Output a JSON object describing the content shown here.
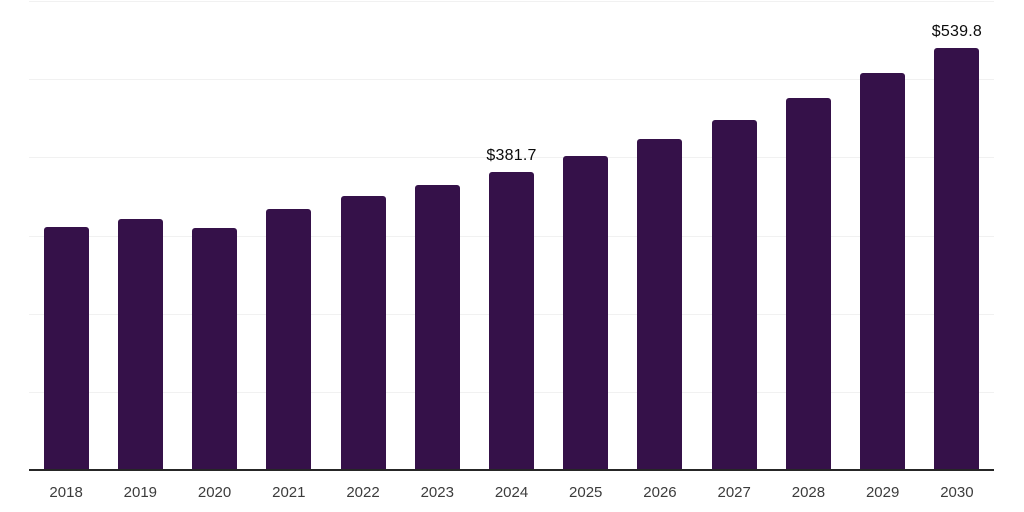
{
  "colors": {
    "background": "#ffffff",
    "bar": "#351149",
    "gridline": "#f1f1f1",
    "axis_line": "#262626",
    "tick_label": "#3c3c3c",
    "value_label": "#0b0b0b"
  },
  "chart_data": {
    "type": "bar",
    "title": "",
    "xlabel": "",
    "ylabel": "",
    "categories": [
      "2018",
      "2019",
      "2020",
      "2021",
      "2022",
      "2023",
      "2024",
      "2025",
      "2026",
      "2027",
      "2028",
      "2029",
      "2030"
    ],
    "values": [
      311,
      321,
      310,
      334,
      350,
      365,
      381.7,
      402,
      424,
      448,
      476,
      508,
      539.8
    ],
    "value_labels": [
      {
        "category": "2024",
        "text": "$381.7"
      },
      {
        "category": "2030",
        "text": "$539.8"
      }
    ],
    "ylim": [
      0,
      600
    ],
    "gridline_values": [
      100,
      200,
      300,
      400,
      500,
      600
    ],
    "grid": true,
    "legend": "none",
    "y_axis_labels_visible": false
  }
}
